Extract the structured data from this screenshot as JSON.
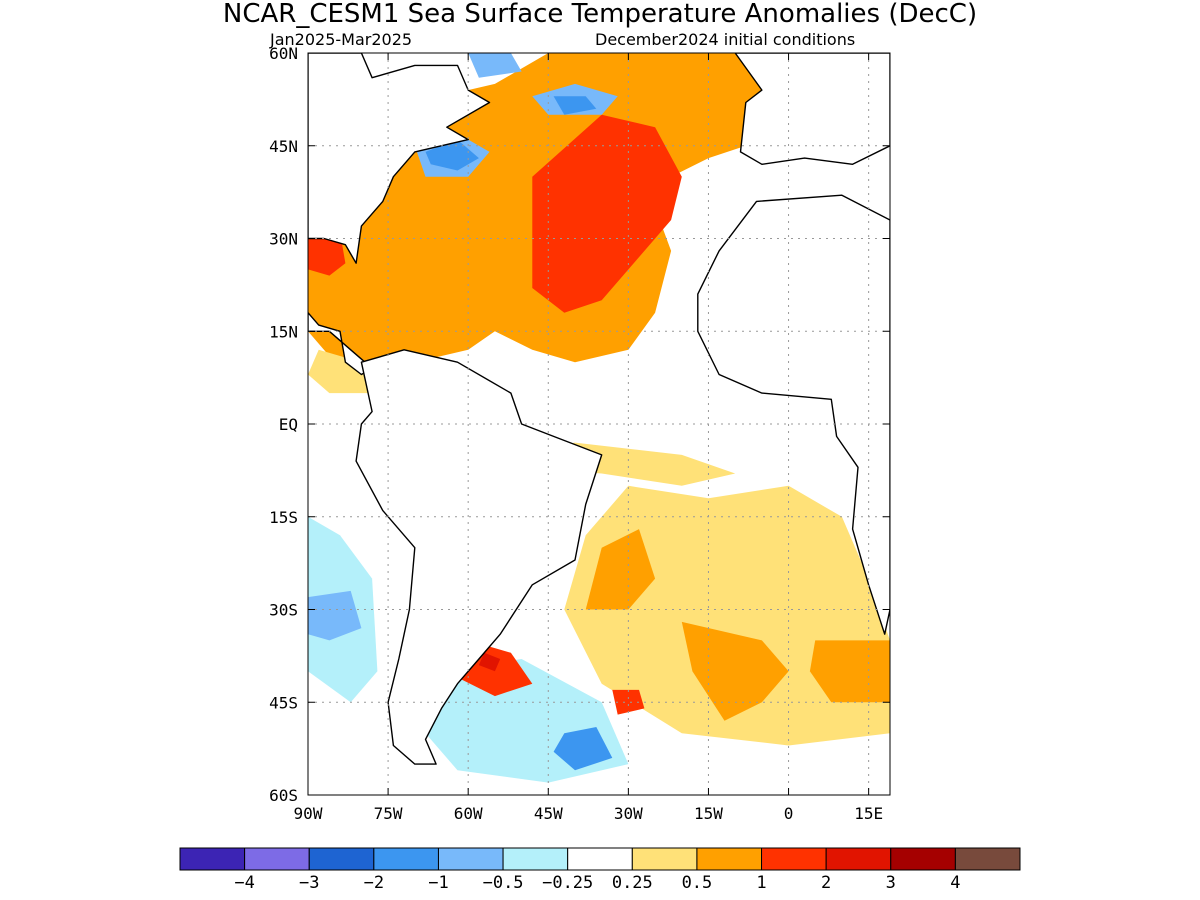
{
  "title": "NCAR_CESM1 Sea Surface Temperature Anomalies (DecC)",
  "subtitle_left": "Jan2025-Mar2025",
  "subtitle_right": "December2024 initial conditions",
  "lat_labels": [
    "60N",
    "45N",
    "30N",
    "15N",
    "EQ",
    "15S",
    "30S",
    "45S",
    "60S"
  ],
  "lon_labels": [
    "90W",
    "75W",
    "60W",
    "45W",
    "30W",
    "15W",
    "0",
    "15E"
  ],
  "colorbar": {
    "colors": [
      "#3c24b4",
      "#7d6be6",
      "#1e64d2",
      "#3c96f0",
      "#78b9fa",
      "#b4f0fa",
      "#ffffff",
      "#ffe178",
      "#ffa000",
      "#ff3200",
      "#e11400",
      "#a50000",
      "#784a3c"
    ],
    "labels": [
      "-4",
      "-3",
      "-2",
      "-1",
      "-0.5",
      "-0.25",
      "0.25",
      "0.5",
      "1",
      "2",
      "3",
      "4"
    ]
  },
  "map_data": {
    "extent": {
      "lon": [
        -90,
        19
      ],
      "lat": [
        -60,
        60
      ]
    },
    "grid_lon": [
      -75,
      -60,
      -45,
      -30,
      -15,
      0,
      15
    ],
    "grid_lat": [
      45,
      30,
      15,
      0,
      -15,
      -30,
      -45
    ],
    "anomaly_regions": [
      {
        "category": "0.5",
        "color": "#ffa000",
        "polygon": [
          [
            -82,
            52
          ],
          [
            -70,
            52
          ],
          [
            -55,
            55
          ],
          [
            -45,
            60
          ],
          [
            -10,
            60
          ],
          [
            0,
            58
          ],
          [
            -3,
            48
          ],
          [
            -8,
            45
          ],
          [
            -15,
            43
          ],
          [
            -22,
            40
          ],
          [
            -25,
            35
          ],
          [
            -22,
            28
          ],
          [
            -25,
            18
          ],
          [
            -30,
            12
          ],
          [
            -40,
            10
          ],
          [
            -48,
            12
          ],
          [
            -55,
            15
          ],
          [
            -60,
            12
          ],
          [
            -70,
            10
          ],
          [
            -78,
            8
          ],
          [
            -85,
            10
          ],
          [
            -90,
            15
          ],
          [
            -90,
            30
          ],
          [
            -82,
            32
          ],
          [
            -78,
            38
          ],
          [
            -72,
            42
          ]
        ]
      },
      {
        "category": "1",
        "color": "#ff3200",
        "polygon": [
          [
            -48,
            40
          ],
          [
            -35,
            50
          ],
          [
            -25,
            48
          ],
          [
            -20,
            40
          ],
          [
            -22,
            33
          ],
          [
            -30,
            25
          ],
          [
            -35,
            20
          ],
          [
            -42,
            18
          ],
          [
            -48,
            22
          ],
          [
            -48,
            30
          ]
        ]
      },
      {
        "category": "1",
        "color": "#ff3200",
        "polygon": [
          [
            -90,
            30
          ],
          [
            -84,
            31
          ],
          [
            -83,
            26
          ],
          [
            -86,
            24
          ],
          [
            -90,
            25
          ]
        ]
      },
      {
        "category": "0.25",
        "color": "#ffe178",
        "polygon": [
          [
            -88,
            12
          ],
          [
            -80,
            10
          ],
          [
            -72,
            12
          ],
          [
            -78,
            5
          ],
          [
            -86,
            5
          ],
          [
            -90,
            8
          ]
        ]
      },
      {
        "category": "-0.5",
        "color": "#78b9fa",
        "polygon": [
          [
            -70,
            45
          ],
          [
            -62,
            47
          ],
          [
            -56,
            44
          ],
          [
            -60,
            40
          ],
          [
            -68,
            40
          ]
        ]
      },
      {
        "category": "-1",
        "color": "#3c96f0",
        "polygon": [
          [
            -68,
            44
          ],
          [
            -62,
            46
          ],
          [
            -58,
            43
          ],
          [
            -62,
            41
          ],
          [
            -67,
            42
          ]
        ]
      },
      {
        "category": "-0.5",
        "color": "#78b9fa",
        "polygon": [
          [
            -48,
            53
          ],
          [
            -40,
            55
          ],
          [
            -32,
            53
          ],
          [
            -35,
            50
          ],
          [
            -45,
            50
          ]
        ]
      },
      {
        "category": "-1",
        "color": "#3c96f0",
        "polygon": [
          [
            -44,
            53
          ],
          [
            -38,
            53
          ],
          [
            -36,
            51
          ],
          [
            -42,
            50
          ]
        ]
      },
      {
        "category": "-0.5",
        "color": "#78b9fa",
        "polygon": [
          [
            -60,
            60
          ],
          [
            -52,
            60
          ],
          [
            -50,
            57
          ],
          [
            -58,
            56
          ]
        ]
      },
      {
        "category": "0.25",
        "color": "#ffe178",
        "polygon": [
          [
            -55,
            -5
          ],
          [
            -40,
            -3
          ],
          [
            -20,
            -5
          ],
          [
            -10,
            -8
          ],
          [
            -20,
            -10
          ],
          [
            -35,
            -8
          ],
          [
            -50,
            -7
          ]
        ]
      },
      {
        "category": "0.25",
        "color": "#ffe178",
        "polygon": [
          [
            -38,
            -18
          ],
          [
            -30,
            -10
          ],
          [
            -15,
            -12
          ],
          [
            0,
            -10
          ],
          [
            10,
            -15
          ],
          [
            15,
            -25
          ],
          [
            19,
            -35
          ],
          [
            19,
            -50
          ],
          [
            0,
            -52
          ],
          [
            -20,
            -50
          ],
          [
            -35,
            -42
          ],
          [
            -42,
            -30
          ]
        ]
      },
      {
        "category": "0.5",
        "color": "#ffa000",
        "polygon": [
          [
            -35,
            -20
          ],
          [
            -28,
            -17
          ],
          [
            -25,
            -25
          ],
          [
            -30,
            -30
          ],
          [
            -38,
            -30
          ]
        ]
      },
      {
        "category": "0.5",
        "color": "#ffa000",
        "polygon": [
          [
            -20,
            -32
          ],
          [
            -5,
            -35
          ],
          [
            0,
            -40
          ],
          [
            -5,
            -45
          ],
          [
            -12,
            -48
          ],
          [
            -18,
            -40
          ]
        ]
      },
      {
        "category": "0.5",
        "color": "#ffa000",
        "polygon": [
          [
            5,
            -35
          ],
          [
            19,
            -35
          ],
          [
            19,
            -45
          ],
          [
            8,
            -45
          ],
          [
            4,
            -40
          ]
        ]
      },
      {
        "category": "-0.25",
        "color": "#b4f0fa",
        "polygon": [
          [
            -90,
            -15
          ],
          [
            -84,
            -18
          ],
          [
            -78,
            -25
          ],
          [
            -77,
            -40
          ],
          [
            -82,
            -45
          ],
          [
            -90,
            -40
          ]
        ]
      },
      {
        "category": "-0.5",
        "color": "#78b9fa",
        "polygon": [
          [
            -90,
            -28
          ],
          [
            -82,
            -27
          ],
          [
            -80,
            -33
          ],
          [
            -86,
            -35
          ],
          [
            -90,
            -34
          ]
        ]
      },
      {
        "category": "-0.25",
        "color": "#b4f0fa",
        "polygon": [
          [
            -65,
            -40
          ],
          [
            -50,
            -38
          ],
          [
            -35,
            -45
          ],
          [
            -30,
            -55
          ],
          [
            -45,
            -58
          ],
          [
            -62,
            -56
          ],
          [
            -68,
            -50
          ]
        ]
      },
      {
        "category": "-1",
        "color": "#3c96f0",
        "polygon": [
          [
            -42,
            -50
          ],
          [
            -36,
            -49
          ],
          [
            -33,
            -54
          ],
          [
            -40,
            -56
          ],
          [
            -44,
            -53
          ]
        ]
      },
      {
        "category": "1",
        "color": "#ff3200",
        "polygon": [
          [
            -60,
            -35
          ],
          [
            -52,
            -37
          ],
          [
            -48,
            -42
          ],
          [
            -55,
            -44
          ],
          [
            -62,
            -41
          ]
        ]
      },
      {
        "category": "2",
        "color": "#e11400",
        "polygon": [
          [
            -57,
            -37
          ],
          [
            -54,
            -38
          ],
          [
            -55,
            -40
          ],
          [
            -58,
            -39
          ]
        ]
      },
      {
        "category": "1",
        "color": "#ff3200",
        "polygon": [
          [
            -33,
            -43
          ],
          [
            -28,
            -43
          ],
          [
            -27,
            -46
          ],
          [
            -32,
            -47
          ]
        ]
      }
    ],
    "land": [
      {
        "name": "North America",
        "polygon": [
          [
            -90,
            60
          ],
          [
            -80,
            60
          ],
          [
            -78,
            56
          ],
          [
            -70,
            58
          ],
          [
            -62,
            58
          ],
          [
            -60,
            54
          ],
          [
            -56,
            52
          ],
          [
            -64,
            48
          ],
          [
            -60,
            46
          ],
          [
            -70,
            44
          ],
          [
            -74,
            40
          ],
          [
            -76,
            36
          ],
          [
            -80,
            32
          ],
          [
            -81,
            26
          ],
          [
            -83,
            29
          ],
          [
            -87,
            30
          ],
          [
            -90,
            30
          ]
        ]
      },
      {
        "name": "Central America",
        "polygon": [
          [
            -90,
            18
          ],
          [
            -88,
            16
          ],
          [
            -84,
            15
          ],
          [
            -83,
            10
          ],
          [
            -80,
            8
          ],
          [
            -78,
            9
          ],
          [
            -82,
            12
          ],
          [
            -86,
            15
          ],
          [
            -90,
            15
          ]
        ]
      },
      {
        "name": "South America",
        "polygon": [
          [
            -80,
            10
          ],
          [
            -72,
            12
          ],
          [
            -62,
            10
          ],
          [
            -52,
            5
          ],
          [
            -50,
            0
          ],
          [
            -44,
            -2
          ],
          [
            -35,
            -5
          ],
          [
            -38,
            -13
          ],
          [
            -40,
            -22
          ],
          [
            -48,
            -26
          ],
          [
            -54,
            -34
          ],
          [
            -58,
            -38
          ],
          [
            -62,
            -42
          ],
          [
            -65,
            -46
          ],
          [
            -68,
            -51
          ],
          [
            -66,
            -55
          ],
          [
            -70,
            -55
          ],
          [
            -74,
            -52
          ],
          [
            -75,
            -45
          ],
          [
            -73,
            -38
          ],
          [
            -71,
            -30
          ],
          [
            -70,
            -20
          ],
          [
            -76,
            -14
          ],
          [
            -81,
            -6
          ],
          [
            -80,
            0
          ],
          [
            -78,
            2
          ]
        ]
      },
      {
        "name": "Europe",
        "polygon": [
          [
            -10,
            60
          ],
          [
            19,
            60
          ],
          [
            19,
            45
          ],
          [
            12,
            42
          ],
          [
            3,
            43
          ],
          [
            -5,
            42
          ],
          [
            -9,
            44
          ],
          [
            -8,
            52
          ],
          [
            -5,
            54
          ]
        ]
      },
      {
        "name": "Africa",
        "polygon": [
          [
            -6,
            36
          ],
          [
            10,
            37
          ],
          [
            19,
            33
          ],
          [
            19,
            -30
          ],
          [
            18,
            -34
          ],
          [
            15,
            -26
          ],
          [
            12,
            -17
          ],
          [
            13,
            -7
          ],
          [
            9,
            -2
          ],
          [
            8,
            4
          ],
          [
            -5,
            5
          ],
          [
            -13,
            8
          ],
          [
            -17,
            15
          ],
          [
            -17,
            21
          ],
          [
            -13,
            28
          ]
        ]
      }
    ]
  }
}
